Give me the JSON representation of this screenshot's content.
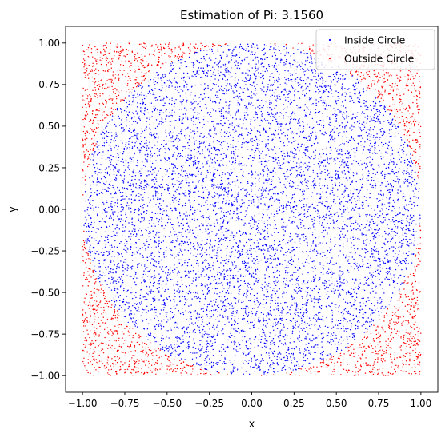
{
  "chart_data": {
    "type": "scatter",
    "title": "Estimation of Pi: 3.1560",
    "xlabel": "x",
    "ylabel": "y",
    "xlim": [
      -1.1,
      1.1
    ],
    "ylim": [
      -1.1,
      1.1
    ],
    "grid": false,
    "legend_position": "top-right",
    "x_ticks": [
      -1.0,
      -0.75,
      -0.5,
      -0.25,
      0.0,
      0.25,
      0.5,
      0.75,
      1.0
    ],
    "x_tick_labels": [
      "−1.00",
      "−0.75",
      "−0.50",
      "−0.25",
      "0.00",
      "0.25",
      "0.50",
      "0.75",
      "1.00"
    ],
    "y_ticks": [
      -1.0,
      -0.75,
      -0.5,
      -0.25,
      0.0,
      0.25,
      0.5,
      0.75,
      1.0
    ],
    "y_tick_labels": [
      "−1.00",
      "−0.75",
      "−0.50",
      "−0.25",
      "0.00",
      "0.25",
      "0.50",
      "0.75",
      "1.00"
    ],
    "series": [
      {
        "name": "Inside Circle",
        "color": "#0000ff",
        "condition": "x^2 + y^2 <= 1",
        "x": [
          0.12,
          -0.34,
          0.56,
          -0.71,
          0.05,
          0.43,
          -0.18,
          0.67,
          -0.52,
          0.29,
          -0.09,
          0.81,
          -0.63,
          0.37,
          -0.27,
          0.14,
          0.58,
          -0.44,
          0.02,
          -0.85
        ],
        "y": [
          0.45,
          -0.22,
          0.31,
          0.12,
          -0.67,
          0.74,
          0.59,
          -0.41,
          -0.55,
          -0.08,
          0.93,
          0.27,
          0.61,
          -0.86,
          -0.13,
          0.22,
          0.68,
          0.36,
          -0.33,
          -0.18
        ]
      },
      {
        "name": "Outside Circle",
        "color": "#ff0000",
        "condition": "x^2 + y^2 > 1",
        "x": [
          0.92,
          -0.95,
          0.88,
          -0.87,
          0.97,
          -0.76,
          0.79,
          -0.91,
          0.99,
          -0.98,
          0.73,
          -0.82
        ],
        "y": [
          0.91,
          0.83,
          -0.89,
          -0.94,
          0.42,
          0.96,
          0.77,
          -0.62,
          -0.27,
          0.15,
          -0.85,
          0.72
        ]
      }
    ],
    "total_points": 10000
  }
}
